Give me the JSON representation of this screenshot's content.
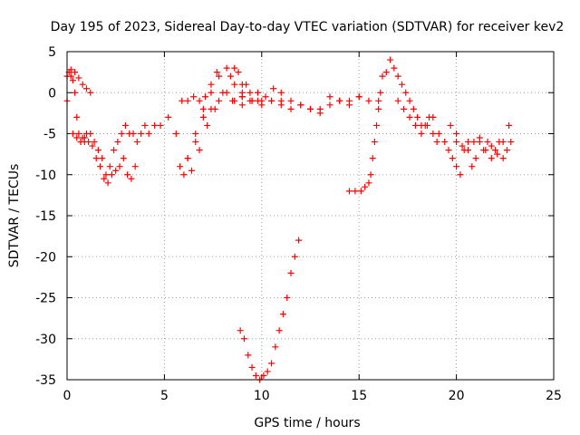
{
  "chart_data": {
    "type": "scatter",
    "title": "Day 195 of 2023, Sidereal Day-to-day VTEC variation (SDTVAR) for receiver kev2",
    "xlabel": "GPS time / hours",
    "ylabel": "SDTVAR / TECUs",
    "xlim": [
      0,
      25
    ],
    "ylim": [
      -35,
      5
    ],
    "xticks": [
      0,
      5,
      10,
      15,
      20,
      25
    ],
    "yticks": [
      5,
      0,
      -5,
      -10,
      -15,
      -20,
      -25,
      -30,
      -35
    ],
    "xtick_labels": [
      "0",
      "5",
      "10",
      "15",
      "20",
      "25"
    ],
    "ytick_labels": [
      "5",
      "0",
      "-5",
      "-10",
      "-15",
      "-20",
      "-25",
      "-30",
      "-35"
    ],
    "grid": true,
    "marker": "plus",
    "color": "#ff0000",
    "series": [
      {
        "name": "SDTVAR",
        "segments": [
          {
            "name": "early-scatter",
            "x": [
              0,
              0.1,
              0.2,
              0.3,
              0.4,
              0.5,
              0.6,
              0.7,
              0.8,
              0.9,
              1.0,
              1.2,
              1.4,
              1.6,
              1.8,
              2.0,
              2.2,
              2.4,
              2.6,
              2.8,
              3.0,
              3.2,
              3.4,
              3.6,
              3.8,
              4.0,
              4.2,
              4.5,
              4.8,
              5.2
            ],
            "y": [
              -1,
              2.5,
              2,
              1.5,
              0,
              -3,
              -5,
              -6,
              -5.5,
              -6,
              -5,
              -5,
              -6,
              -7,
              -8,
              -10,
              -9,
              -7,
              -6,
              -5,
              -4,
              -5,
              -5,
              -6,
              -5,
              -4,
              -5,
              -4,
              -4,
              -3
            ]
          },
          {
            "name": "low-cluster",
            "x": [
              0.3,
              0.5,
              0.7,
              0.9,
              1.1,
              1.3,
              1.5,
              1.7,
              1.9,
              2.1,
              2.3,
              2.5,
              2.7,
              2.9,
              3.1,
              3.3,
              3.5
            ],
            "y": [
              -5,
              -5.5,
              -6,
              -5.5,
              -6,
              -6.5,
              -8,
              -9,
              -10.5,
              -11,
              -10,
              -9.5,
              -9,
              -8,
              -10,
              -10.5,
              -9
            ]
          },
          {
            "name": "top-left",
            "x": [
              0,
              0.2,
              0.4,
              0.6,
              0.8,
              1.0,
              1.2
            ],
            "y": [
              2,
              2.8,
              2.5,
              1.8,
              1,
              0.5,
              0
            ]
          },
          {
            "name": "ridge-1",
            "x": [
              5.8,
              6.2,
              6.6,
              7.0,
              7.4,
              7.8,
              8.2,
              8.6,
              9.0
            ],
            "y": [
              -9,
              -8,
              -5,
              -2,
              0,
              2,
              3,
              3,
              1
            ]
          },
          {
            "name": "ridge-2",
            "x": [
              6.0,
              6.4,
              6.8,
              7.2,
              7.6,
              8.0,
              8.4,
              8.8,
              9.2
            ],
            "y": [
              -10,
              -9.5,
              -7,
              -4,
              -2,
              0,
              2,
              2.5,
              1
            ]
          },
          {
            "name": "ridge-3",
            "x": [
              6.2,
              6.6,
              7.0,
              7.4,
              7.8,
              8.2,
              8.6,
              9.0,
              9.4,
              9.8
            ],
            "y": [
              -8,
              -6,
              -3,
              -2,
              -1,
              0,
              1,
              0,
              -1,
              0
            ]
          },
          {
            "name": "ridge-4",
            "x": [
              5.6,
              5.9,
              6.2,
              6.5,
              6.8,
              7.1,
              7.4,
              7.7
            ],
            "y": [
              -5,
              -1,
              -1,
              -0.5,
              -1,
              -0.5,
              1,
              2.5
            ]
          },
          {
            "name": "middle-flat",
            "x": [
              8.5,
              9.0,
              9.5,
              10.0,
              10.5,
              11.0,
              11.5,
              12.0,
              12.5,
              13.0,
              13.5,
              14.0,
              14.5,
              15.0,
              15.5,
              16.0
            ],
            "y": [
              -1,
              -1.5,
              -1,
              -1.5,
              -1,
              -1.5,
              -2,
              -1.5,
              -2,
              -2,
              -1.5,
              -1,
              -1,
              -0.5,
              -1,
              -1
            ]
          },
          {
            "name": "middle-flat-2",
            "x": [
              9.0,
              9.5,
              10.0,
              10.5,
              11.0,
              11.5,
              12.0,
              12.5,
              13.0,
              13.5,
              14.0,
              14.5,
              15.0
            ],
            "y": [
              -0.5,
              -1,
              -1,
              -1,
              -1,
              -1,
              -1.5,
              -2,
              -2.5,
              -0.5,
              -1,
              -1.5,
              -0.5
            ]
          },
          {
            "name": "middle-flat-3",
            "x": [
              8.6,
              9.0,
              9.4,
              9.8,
              10.2,
              10.6,
              11.0
            ],
            "y": [
              -1,
              -0.5,
              0,
              -1,
              -0.5,
              0.5,
              0
            ]
          },
          {
            "name": "dip",
            "x": [
              8.9,
              9.1,
              9.3,
              9.5,
              9.7,
              9.9,
              10.1,
              10.3,
              10.5,
              10.7,
              10.9,
              11.1,
              11.3,
              11.5,
              11.7,
              11.9
            ],
            "y": [
              -29,
              -30,
              -32,
              -33.5,
              -34.5,
              -35,
              -34.5,
              -34,
              -33,
              -31,
              -29,
              -27,
              -25,
              -22,
              -20,
              -18
            ]
          },
          {
            "name": "rise-15",
            "x": [
              14.5,
              14.8,
              15.1,
              15.3,
              15.5,
              15.6,
              15.7,
              15.8,
              15.9,
              16.0,
              16.1
            ],
            "y": [
              -12,
              -12,
              -12,
              -11.5,
              -11,
              -10,
              -8,
              -6,
              -4,
              -2,
              0
            ]
          },
          {
            "name": "late-high",
            "x": [
              16.2,
              16.4,
              16.6,
              16.8,
              17.0,
              17.2,
              17.4,
              17.6,
              17.8,
              18.0,
              18.2,
              18.4,
              18.6,
              18.8,
              19.0
            ],
            "y": [
              2,
              2.5,
              4,
              3,
              2,
              1,
              0,
              -1,
              -2,
              -3,
              -4,
              -4,
              -3,
              -5,
              -6
            ]
          },
          {
            "name": "late-spread",
            "x": [
              17.0,
              17.3,
              17.6,
              17.9,
              18.2,
              18.5,
              18.8,
              19.1,
              19.4,
              19.7,
              20.0
            ],
            "y": [
              -1,
              -2,
              -3,
              -4,
              -5,
              -4,
              -3,
              -5,
              -6,
              -4,
              -5
            ]
          },
          {
            "name": "tail",
            "x": [
              19.6,
              19.8,
              20.0,
              20.2,
              20.4,
              20.6,
              20.8,
              21.0,
              21.2,
              21.4,
              21.6,
              21.8,
              22.0,
              22.2,
              22.4,
              22.6,
              22.8
            ],
            "y": [
              -7,
              -8,
              -9,
              -10,
              -7,
              -6,
              -9,
              -8,
              -6,
              -7,
              -6,
              -8,
              -7,
              -6,
              -8,
              -7,
              -6
            ]
          },
          {
            "name": "tail-2",
            "x": [
              20.0,
              20.3,
              20.6,
              20.9,
              21.2,
              21.5,
              21.8,
              22.1,
              22.4,
              22.7
            ],
            "y": [
              -6,
              -6.5,
              -7,
              -6,
              -5.5,
              -7,
              -6.5,
              -7.5,
              -6,
              -4
            ]
          }
        ]
      }
    ]
  }
}
